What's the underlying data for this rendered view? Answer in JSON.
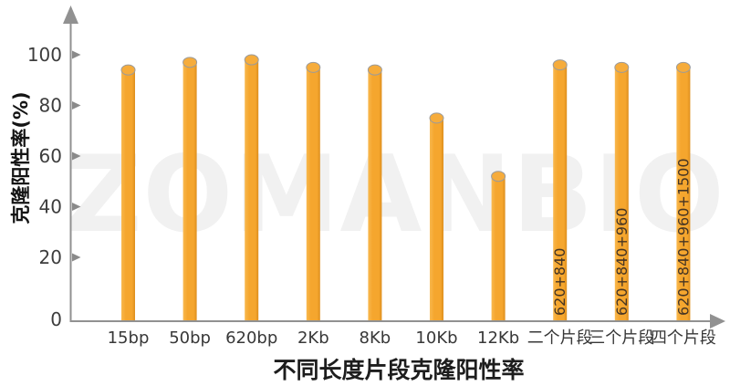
{
  "watermark": {
    "text": "ZOMANBIO",
    "color": "#f1f1f1"
  },
  "chart_data": {
    "type": "bar",
    "title": "不同长度片段克隆阳性率",
    "ylabel": "克隆阳性率(%)",
    "xlabel": "",
    "categories": [
      "15bp",
      "50bp",
      "620bp",
      "2Kb",
      "8Kb",
      "10Kb",
      "12Kb",
      "二个片段",
      "三个片段",
      "四个片段"
    ],
    "values": [
      94,
      97,
      98,
      95,
      94,
      75,
      52,
      96,
      95,
      95
    ],
    "bar_inline_labels": [
      "",
      "",
      "",
      "",
      "",
      "",
      "",
      "620+840",
      "620+840+960",
      "620+840+960+1500"
    ],
    "ylim": [
      0,
      100
    ],
    "yticks": [
      0,
      20,
      40,
      60,
      80,
      100
    ],
    "grid": false,
    "legend": false,
    "bar_shape": "cylinder",
    "colors": {
      "bar_light": "#F8B84E",
      "bar_main": "#F5A62E",
      "bar_dark": "#DD8E1D",
      "bar_top_fill": "#F6AC3B",
      "bar_top_stroke": "#9b9b9b",
      "axis": "#919191",
      "tick_arrow": "#8a8a8a",
      "tick_text": "#3d3d3d",
      "category_text": "#383838",
      "bar_label_text": "#463524",
      "title_text": "#1d1d1d",
      "ylabel_text": "#141414"
    }
  }
}
